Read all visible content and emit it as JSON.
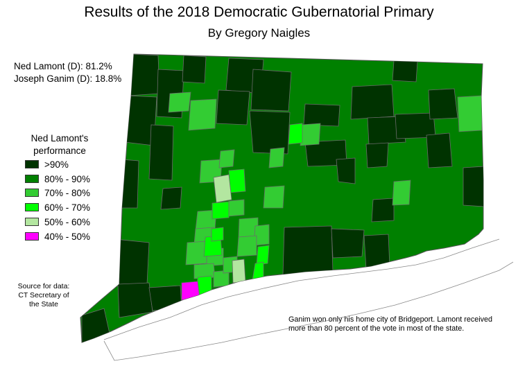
{
  "title": "Results of the 2018 Democratic Gubernatorial Primary",
  "subtitle": "By Gregory Naigles",
  "results": [
    {
      "label": "Ned Lamont (D): 81.2%"
    },
    {
      "label": "Joseph Ganim (D): 18.8%"
    }
  ],
  "legend": {
    "title_line1": "Ned Lamont's",
    "title_line2": "performance",
    "items": [
      {
        "label": ">90%",
        "color": "#003300"
      },
      {
        "label": "80% - 90%",
        "color": "#008000"
      },
      {
        "label": "70% - 80%",
        "color": "#33cc33"
      },
      {
        "label": "60% - 70%",
        "color": "#00ff00"
      },
      {
        "label": "50% - 60%",
        "color": "#b3e6a0"
      },
      {
        "label": "40% - 50%",
        "color": "#ff00ff"
      }
    ]
  },
  "source": {
    "line1": "Source for data:",
    "line2": "CT Secretary of",
    "line3": "the State"
  },
  "note": {
    "line1": "Ganim won only his home city of Bridgeport. Lamont received",
    "line2": "more than 80 percent of the vote in most of the state."
  },
  "colors": {
    "border": "#7a7a7a",
    "dark": "#003300",
    "mid": "#008000",
    "light": "#33cc33",
    "bright": "#00ff00",
    "pale": "#b3e6a0",
    "magenta": "#ff00ff"
  }
}
